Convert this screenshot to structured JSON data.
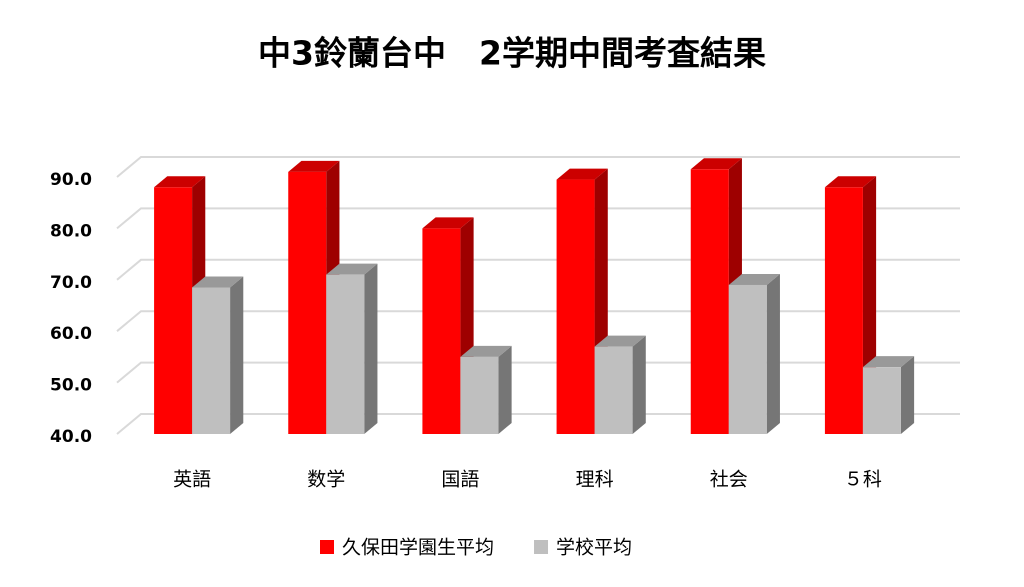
{
  "chart_data": {
    "type": "bar3d",
    "title": "中3鈴蘭台中　2学期中間考査結果",
    "categories": [
      "英語",
      "数学",
      "国語",
      "理科",
      "社会",
      "５科"
    ],
    "series": [
      {
        "name": "久保田学園生平均",
        "color": "#ff0000",
        "values": [
          88,
          91,
          80,
          89.5,
          91.5,
          88
        ]
      },
      {
        "name": "学校平均",
        "color": "#bfbfbf",
        "values": [
          68.5,
          71,
          55,
          57,
          69,
          53
        ]
      }
    ],
    "ylim": [
      40,
      90
    ],
    "yticks": [
      {
        "value": 40,
        "label": "40.0"
      },
      {
        "value": 50,
        "label": "50.0"
      },
      {
        "value": 60,
        "label": "60.0"
      },
      {
        "value": 70,
        "label": "70.0"
      },
      {
        "value": 80,
        "label": "80.0"
      },
      {
        "value": 90,
        "label": "90.0"
      }
    ],
    "grid": true,
    "legend": "bottom"
  }
}
